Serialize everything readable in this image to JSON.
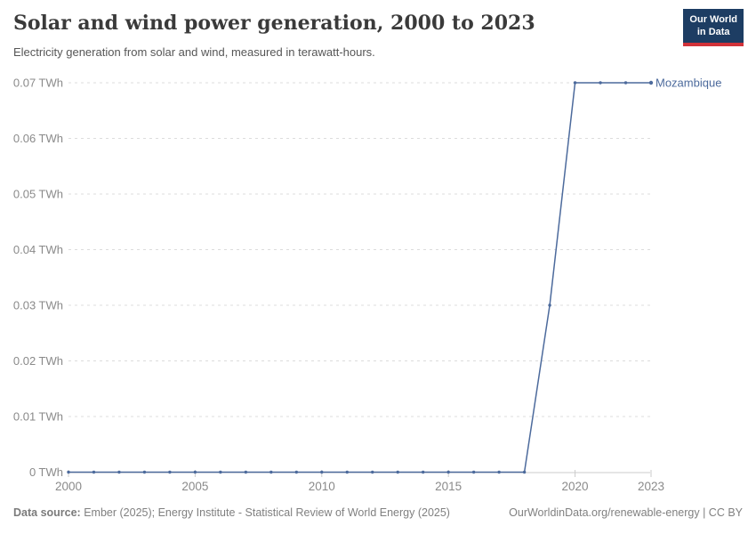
{
  "chart_data": {
    "type": "line",
    "title": "Solar and wind power generation, 2000 to 2023",
    "subtitle": "Electricity generation from solar and wind, measured in terawatt-hours.",
    "unit": "TWh",
    "x": [
      2000,
      2001,
      2002,
      2003,
      2004,
      2005,
      2006,
      2007,
      2008,
      2009,
      2010,
      2011,
      2012,
      2013,
      2014,
      2015,
      2016,
      2017,
      2018,
      2019,
      2020,
      2021,
      2022,
      2023
    ],
    "series": [
      {
        "name": "Mozambique",
        "color": "#4C6A9C",
        "values": [
          0,
          0,
          0,
          0,
          0,
          0,
          0,
          0,
          0,
          0,
          0,
          0,
          0,
          0,
          0,
          0,
          0,
          0,
          0,
          0.03,
          0.07,
          0.07,
          0.07,
          0.07
        ]
      }
    ],
    "xlim": [
      2000,
      2023
    ],
    "ylim": [
      0,
      0.07
    ],
    "x_tick_labels": [
      2000,
      2005,
      2010,
      2015,
      2020,
      2023
    ],
    "y_ticks": [
      0,
      0.01,
      0.02,
      0.03,
      0.04,
      0.05,
      0.06,
      0.07
    ],
    "y_tick_labels": [
      "0 TWh",
      "0.01 TWh",
      "0.02 TWh",
      "0.03 TWh",
      "0.04 TWh",
      "0.05 TWh",
      "0.06 TWh",
      "0.07 TWh"
    ],
    "grid": "horizontal-dashed",
    "legend_position": "end-of-line-label"
  },
  "logo": {
    "line1": "Our World",
    "line2": "in Data"
  },
  "footer": {
    "source_label": "Data source:",
    "source_text": " Ember (2025); Energy Institute - Statistical Review of World Energy (2025)",
    "credit": "OurWorldinData.org/renewable-energy | CC BY"
  },
  "colors": {
    "accent": "#4C6A9C",
    "grid": "#dcdcdc",
    "axis": "#cbcbcb",
    "tick_label": "#8a8a8a",
    "title_text": "#3a3a3a",
    "subtitle_text": "#565656",
    "footer_text": "#808080",
    "logo_bg": "#1d3d63",
    "logo_accent": "#d13239"
  }
}
